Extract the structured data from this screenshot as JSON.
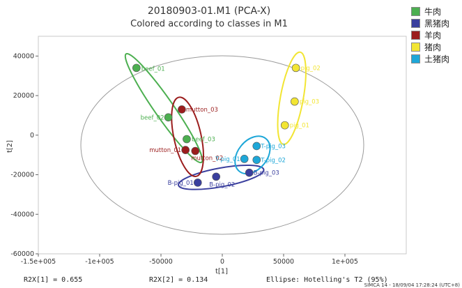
{
  "chart_data": {
    "type": "scatter",
    "title": "20180903-01.M1 (PCA-X)",
    "subtitle": "Colored according to classes in M1",
    "xlabel": "t[1]",
    "ylabel": "t[2]",
    "xlim": [
      -150000,
      150000
    ],
    "ylim": [
      -60000,
      50000
    ],
    "x_ticks": [
      -150000,
      -100000,
      -50000,
      0,
      50000,
      100000
    ],
    "x_tick_labels": [
      "-1.5e+005",
      "-1e+005",
      "-50000",
      "0",
      "50000",
      "1e+005"
    ],
    "y_ticks": [
      -60000,
      -40000,
      -20000,
      0,
      20000,
      40000
    ],
    "y_tick_labels": [
      "-60000",
      "-40000",
      "-20000",
      "0",
      "20000",
      "40000"
    ],
    "grid": false,
    "legend_position": "top-right",
    "series": [
      {
        "name": "牛肉",
        "color": "#4caf50",
        "points": [
          {
            "x": -70000,
            "y": 34000,
            "label": "beef_01"
          },
          {
            "x": -44000,
            "y": 9000,
            "label": "beef_02"
          },
          {
            "x": -29000,
            "y": -2000,
            "label": "beef_03"
          }
        ]
      },
      {
        "name": "黑猪肉",
        "color": "#3a3f9e",
        "points": [
          {
            "x": -20000,
            "y": -24000,
            "label": "B-pig_01"
          },
          {
            "x": -5000,
            "y": -21000,
            "label": "B-pig_02"
          },
          {
            "x": 22000,
            "y": -19000,
            "label": "B-pig_03"
          }
        ]
      },
      {
        "name": "羊肉",
        "color": "#9b1d1d",
        "points": [
          {
            "x": -33000,
            "y": 13000,
            "label": "mutton_03"
          },
          {
            "x": -30000,
            "y": -7500,
            "label": "mutton_01"
          },
          {
            "x": -22000,
            "y": -8000,
            "label": "mutton_02"
          }
        ]
      },
      {
        "name": "猪肉",
        "color": "#f2e533",
        "points": [
          {
            "x": 60000,
            "y": 34000,
            "label": "pig_02"
          },
          {
            "x": 59000,
            "y": 17000,
            "label": "pig_03"
          },
          {
            "x": 51000,
            "y": 5000,
            "label": "pig_01"
          }
        ]
      },
      {
        "name": "土猪肉",
        "color": "#1ea7d8",
        "points": [
          {
            "x": 28000,
            "y": -5500,
            "label": "T-pig_03"
          },
          {
            "x": 18000,
            "y": -12000,
            "label": "T-pig_01"
          },
          {
            "x": 28000,
            "y": -12500,
            "label": "T-pig_02"
          }
        ]
      }
    ],
    "footer": {
      "r2x1": "R2X[1] = 0.655",
      "r2x2": "R2X[2] = 0.134",
      "ellipse": "Ellipse: Hotelling's T2 (95%)",
      "software": "SIMCA 14 - 18/09/04 17:28:24 (UTC+8)"
    }
  }
}
